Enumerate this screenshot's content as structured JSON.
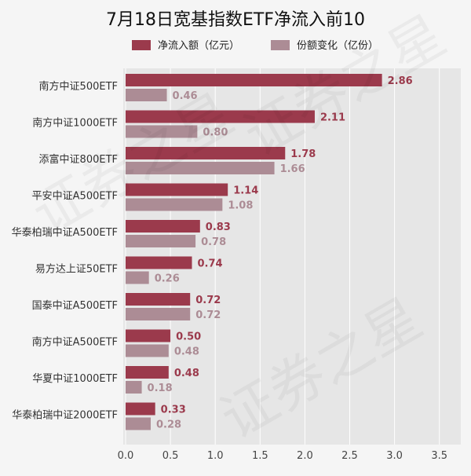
{
  "chart_data": {
    "type": "bar",
    "orientation": "horizontal",
    "title": "7月18日宽基指数ETF净流入前10",
    "categories": [
      "南方中证500ETF",
      "南方中证1000ETF",
      "添富中证800ETF",
      "平安中证A500ETF",
      "华泰柏瑞中证A500ETF",
      "易方达上证50ETF",
      "国泰中证A500ETF",
      "南方中证A500ETF",
      "华夏中证1000ETF",
      "华泰柏瑞中证2000ETF"
    ],
    "series": [
      {
        "name": "净流入额（亿元）",
        "color": "#9b3a4c",
        "values": [
          2.86,
          2.11,
          1.78,
          1.14,
          0.83,
          0.74,
          0.72,
          0.5,
          0.48,
          0.33
        ]
      },
      {
        "name": "份额变化（亿份）",
        "color": "#ac8c95",
        "values": [
          0.46,
          0.8,
          1.66,
          1.08,
          0.78,
          0.26,
          0.72,
          0.48,
          0.18,
          0.28
        ]
      }
    ],
    "xlim": [
      0,
      3.75
    ],
    "xticks": [
      "0.0",
      "0.5",
      "1.0",
      "1.5",
      "2.0",
      "2.5",
      "3.0",
      "3.5"
    ],
    "legend": "top",
    "grid": true
  },
  "watermark": "证券之星"
}
